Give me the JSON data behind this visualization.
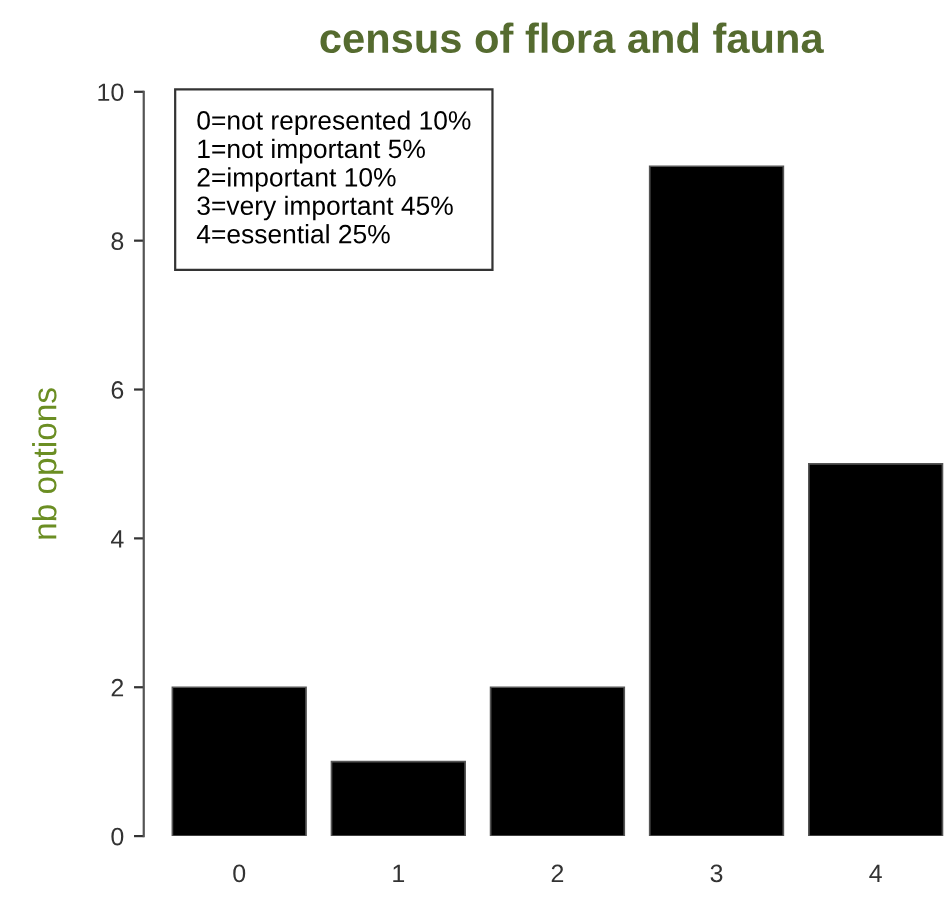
{
  "chart_data": {
    "type": "bar",
    "title": "census of flora and fauna",
    "ylabel": "nb options",
    "categories": [
      "0",
      "1",
      "2",
      "3",
      "4"
    ],
    "values": [
      2,
      1,
      2,
      9,
      5
    ],
    "color": "#000000",
    "ylim": [
      0,
      10
    ],
    "yticks": [
      0,
      2,
      4,
      6,
      8,
      10
    ],
    "grid": false,
    "annotations": [
      "0=not represented 10%\n1=not important 5%\n2=important 10%\n3=very important 45%\n4=essential 25%"
    ]
  }
}
